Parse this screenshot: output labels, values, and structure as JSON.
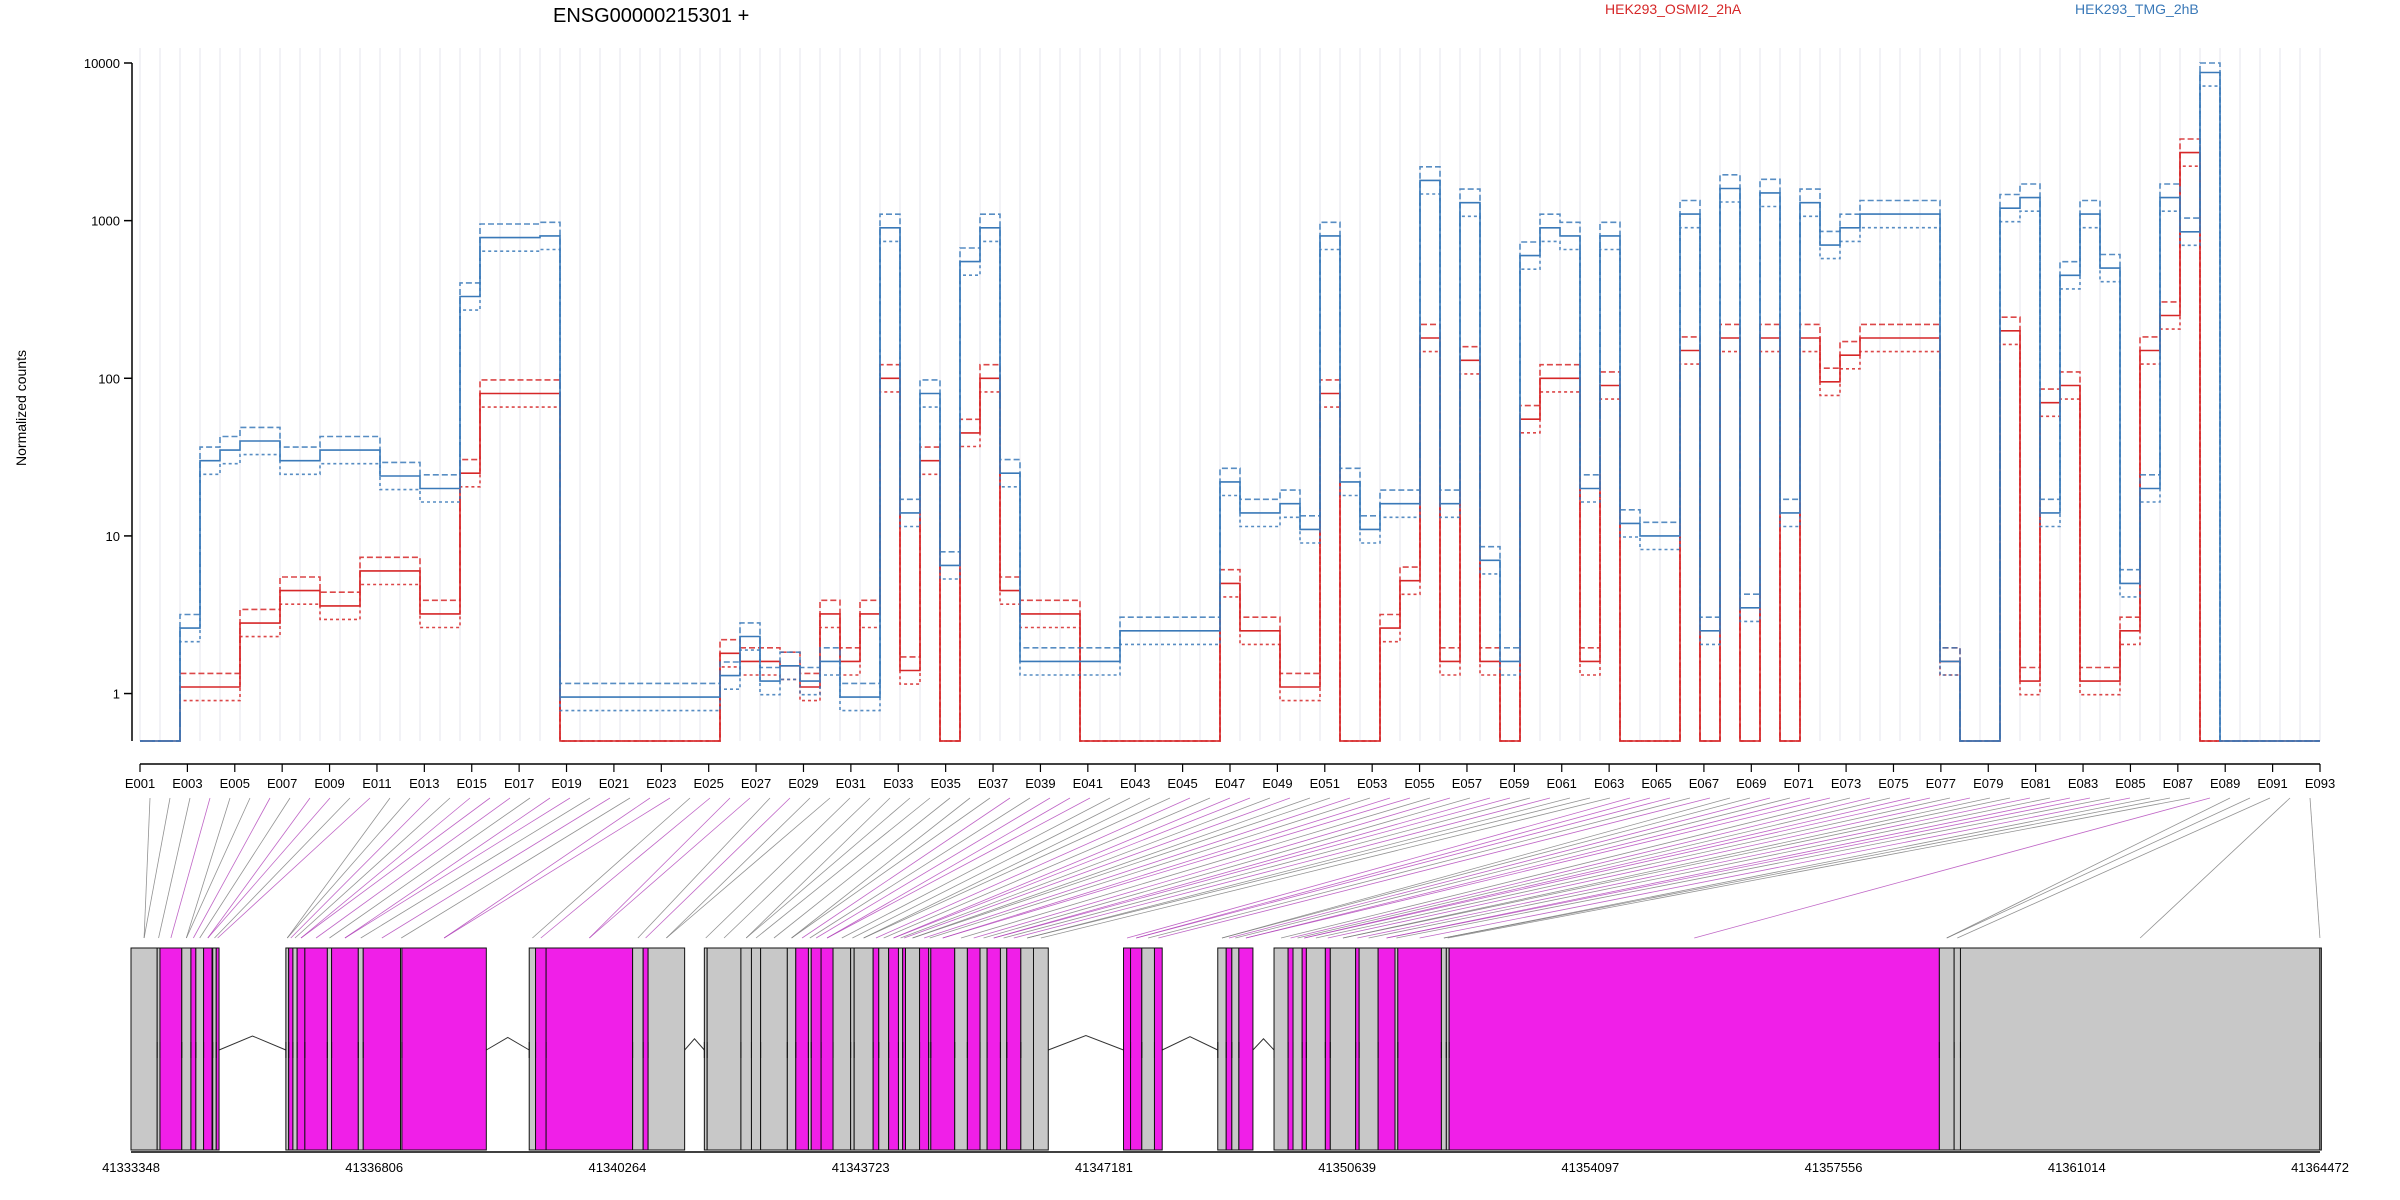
{
  "chart_data": {
    "type": "line",
    "title": "ENSG00000215301 +",
    "ylabel": "Normalized counts",
    "yscale": "log",
    "ylim": [
      0.5,
      10000
    ],
    "yticks": [
      1,
      10,
      100,
      1000,
      10000
    ],
    "ytick_labels": [
      "1",
      "10",
      "100",
      "1000",
      "10000"
    ],
    "grid": "vertical, light",
    "legend_placement": "top",
    "exon_axis_labels": [
      "E001",
      "E003",
      "E005",
      "E007",
      "E009",
      "E011",
      "E013",
      "E015",
      "E017",
      "E019",
      "E021",
      "E023",
      "E025",
      "E027",
      "E029",
      "E031",
      "E033",
      "E035",
      "E037",
      "E039",
      "E041",
      "E043",
      "E045",
      "E047",
      "E049",
      "E051",
      "E053",
      "E055",
      "E057",
      "E059",
      "E061",
      "E063",
      "E065",
      "E067",
      "E069",
      "E071",
      "E073",
      "E075",
      "E077",
      "E079",
      "E081",
      "E083",
      "E085",
      "E087",
      "E089",
      "E091",
      "E093"
    ],
    "series": [
      {
        "name": "HEK293_OSMI2_2hA",
        "color": "#d62728",
        "values": [
          0.5,
          0.5,
          1.1,
          1.1,
          1.1,
          2.8,
          2.8,
          4.5,
          4.5,
          3.6,
          3.6,
          6,
          6,
          6,
          3.2,
          3.2,
          25,
          80,
          80,
          80,
          80,
          0.5,
          0.5,
          0.5,
          0.5,
          0.5,
          0.5,
          0.5,
          0.5,
          1.8,
          1.6,
          1.6,
          1.5,
          1.1,
          3.2,
          1.6,
          3.2,
          100,
          1.4,
          30,
          0.5,
          45,
          100,
          4.5,
          3.2,
          3.2,
          3.2,
          0.5,
          0.5,
          0.5,
          0.5,
          0.5,
          0.5,
          0.5,
          5,
          2.5,
          2.5,
          1.1,
          1.1,
          80,
          0.5,
          0.5,
          2.6,
          5.2,
          180,
          1.6,
          130,
          1.6,
          0.5,
          55,
          100,
          100,
          1.6,
          90,
          0.5,
          0.5,
          0.5,
          150,
          0.5,
          180,
          0.5,
          180,
          0.5,
          180,
          95,
          140,
          180,
          180,
          180,
          180,
          1.6,
          0.5,
          0.5,
          200,
          1.2,
          70,
          90,
          1.2,
          1.2,
          2.5,
          150,
          250,
          2700,
          0.5,
          0.5,
          0.5,
          0.5,
          0.5,
          0.5
        ]
      },
      {
        "name": "HEK293_TMG_2hB",
        "color": "#3a79b8",
        "values": [
          0.5,
          0.5,
          2.6,
          30,
          35,
          40,
          40,
          30,
          30,
          35,
          35,
          35,
          24,
          24,
          20,
          20,
          330,
          780,
          780,
          780,
          800,
          0.95,
          0.95,
          0.95,
          0.95,
          0.95,
          0.95,
          0.95,
          0.95,
          1.3,
          2.3,
          1.2,
          1.5,
          1.2,
          1.6,
          0.95,
          0.95,
          900,
          14,
          80,
          6.5,
          550,
          900,
          25,
          1.6,
          1.6,
          1.6,
          1.6,
          1.6,
          2.5,
          2.5,
          2.5,
          2.5,
          2.5,
          22,
          14,
          14,
          16,
          11,
          800,
          22,
          11,
          16,
          16,
          1800,
          16,
          1300,
          7,
          1.6,
          600,
          900,
          800,
          20,
          800,
          12,
          10,
          10,
          1100,
          2.5,
          1600,
          3.5,
          1500,
          14,
          1300,
          700,
          900,
          1100,
          1100,
          1100,
          1100,
          1.6,
          0.5,
          0.5,
          1200,
          1400,
          14,
          450,
          1100,
          500,
          5,
          20,
          1400,
          850,
          8700,
          0.5,
          0.5,
          0.5,
          0.5,
          0.5,
          0.95
        ]
      }
    ],
    "gene_model": {
      "coordinate_ticks": [
        "41333348",
        "41336806",
        "41340264",
        "41343723",
        "41347181",
        "41350639",
        "41354097",
        "41357556",
        "41361014",
        "41364472"
      ],
      "xlim": [
        41333348,
        41364472
      ],
      "exons": [
        {
          "start": 41333348,
          "end": 41333720,
          "tested": false
        },
        {
          "start": 41333720,
          "end": 41333760,
          "tested": false
        },
        {
          "start": 41333760,
          "end": 41334070,
          "tested": true
        },
        {
          "start": 41334070,
          "end": 41334200,
          "tested": false
        },
        {
          "start": 41334200,
          "end": 41334270,
          "tested": true
        },
        {
          "start": 41334270,
          "end": 41334380,
          "tested": false
        },
        {
          "start": 41334380,
          "end": 41334500,
          "tested": true
        },
        {
          "start": 41334510,
          "end": 41334560,
          "tested": false
        },
        {
          "start": 41334560,
          "end": 41334600,
          "tested": true
        },
        {
          "start": 41335550,
          "end": 41335590,
          "tested": false
        },
        {
          "start": 41335590,
          "end": 41335650,
          "tested": true
        },
        {
          "start": 41335650,
          "end": 41335710,
          "tested": false
        },
        {
          "start": 41335710,
          "end": 41335820,
          "tested": true
        },
        {
          "start": 41335820,
          "end": 41336140,
          "tested": true
        },
        {
          "start": 41336140,
          "end": 41336200,
          "tested": false
        },
        {
          "start": 41336200,
          "end": 41336580,
          "tested": true
        },
        {
          "start": 41336580,
          "end": 41336650,
          "tested": false
        },
        {
          "start": 41336650,
          "end": 41337180,
          "tested": true
        },
        {
          "start": 41337180,
          "end": 41337200,
          "tested": false
        },
        {
          "start": 41337200,
          "end": 41338400,
          "tested": true
        },
        {
          "start": 41339010,
          "end": 41339100,
          "tested": false
        },
        {
          "start": 41339100,
          "end": 41339250,
          "tested": true
        },
        {
          "start": 41339250,
          "end": 41340480,
          "tested": true
        },
        {
          "start": 41340480,
          "end": 41340630,
          "tested": false
        },
        {
          "start": 41340630,
          "end": 41340700,
          "tested": true
        },
        {
          "start": 41340700,
          "end": 41341220,
          "tested": false
        },
        {
          "start": 41341500,
          "end": 41341540,
          "tested": false
        },
        {
          "start": 41341540,
          "end": 41342020,
          "tested": false
        },
        {
          "start": 41342020,
          "end": 41342170,
          "tested": false
        },
        {
          "start": 41342170,
          "end": 41342300,
          "tested": false
        },
        {
          "start": 41342300,
          "end": 41342680,
          "tested": false
        },
        {
          "start": 41342680,
          "end": 41342800,
          "tested": false
        },
        {
          "start": 41342800,
          "end": 41342980,
          "tested": true
        },
        {
          "start": 41342980,
          "end": 41343020,
          "tested": false
        },
        {
          "start": 41343020,
          "end": 41343160,
          "tested": true
        },
        {
          "start": 41343160,
          "end": 41343330,
          "tested": true
        },
        {
          "start": 41343330,
          "end": 41343580,
          "tested": false
        },
        {
          "start": 41343580,
          "end": 41343630,
          "tested": false
        },
        {
          "start": 41343630,
          "end": 41343900,
          "tested": false
        },
        {
          "start": 41343900,
          "end": 41343980,
          "tested": true
        },
        {
          "start": 41343980,
          "end": 41344120,
          "tested": false
        },
        {
          "start": 41344120,
          "end": 41344260,
          "tested": true
        },
        {
          "start": 41344260,
          "end": 41344320,
          "tested": false
        },
        {
          "start": 41344320,
          "end": 41344360,
          "tested": true
        },
        {
          "start": 41344360,
          "end": 41344560,
          "tested": false
        },
        {
          "start": 41344560,
          "end": 41344690,
          "tested": true
        },
        {
          "start": 41344690,
          "end": 41344720,
          "tested": false
        },
        {
          "start": 41344720,
          "end": 41345060,
          "tested": true
        },
        {
          "start": 41345060,
          "end": 41345240,
          "tested": false
        },
        {
          "start": 41345240,
          "end": 41345420,
          "tested": true
        },
        {
          "start": 41345420,
          "end": 41345520,
          "tested": false
        },
        {
          "start": 41345520,
          "end": 41345710,
          "tested": true
        },
        {
          "start": 41345710,
          "end": 41345800,
          "tested": false
        },
        {
          "start": 41345800,
          "end": 41346000,
          "tested": true
        },
        {
          "start": 41346000,
          "end": 41346180,
          "tested": false
        },
        {
          "start": 41346180,
          "end": 41346390,
          "tested": false
        },
        {
          "start": 41347460,
          "end": 41347560,
          "tested": true
        },
        {
          "start": 41347560,
          "end": 41347720,
          "tested": true
        },
        {
          "start": 41347720,
          "end": 41347900,
          "tested": false
        },
        {
          "start": 41347900,
          "end": 41348010,
          "tested": true
        },
        {
          "start": 41348800,
          "end": 41348920,
          "tested": false
        },
        {
          "start": 41348920,
          "end": 41349000,
          "tested": true
        },
        {
          "start": 41349000,
          "end": 41349100,
          "tested": false
        },
        {
          "start": 41349100,
          "end": 41349300,
          "tested": true
        },
        {
          "start": 41349600,
          "end": 41349800,
          "tested": false
        },
        {
          "start": 41349800,
          "end": 41349870,
          "tested": true
        },
        {
          "start": 41349870,
          "end": 41350000,
          "tested": false
        },
        {
          "start": 41350000,
          "end": 41350060,
          "tested": true
        },
        {
          "start": 41350060,
          "end": 41350330,
          "tested": false
        },
        {
          "start": 41350330,
          "end": 41350400,
          "tested": true
        },
        {
          "start": 41350400,
          "end": 41350760,
          "tested": false
        },
        {
          "start": 41350760,
          "end": 41350810,
          "tested": true
        },
        {
          "start": 41350810,
          "end": 41351080,
          "tested": false
        },
        {
          "start": 41351080,
          "end": 41351320,
          "tested": true
        },
        {
          "start": 41351320,
          "end": 41351360,
          "tested": false
        },
        {
          "start": 41351360,
          "end": 41351980,
          "tested": true
        },
        {
          "start": 41351980,
          "end": 41352050,
          "tested": false
        },
        {
          "start": 41352050,
          "end": 41352090,
          "tested": false
        },
        {
          "start": 41352090,
          "end": 41359060,
          "tested": true
        },
        {
          "start": 41359060,
          "end": 41359270,
          "tested": false
        },
        {
          "start": 41359270,
          "end": 41359360,
          "tested": false
        },
        {
          "start": 41359360,
          "end": 41364470,
          "tested": false
        },
        {
          "start": 41364470,
          "end": 41364472,
          "tested": false
        }
      ]
    }
  }
}
